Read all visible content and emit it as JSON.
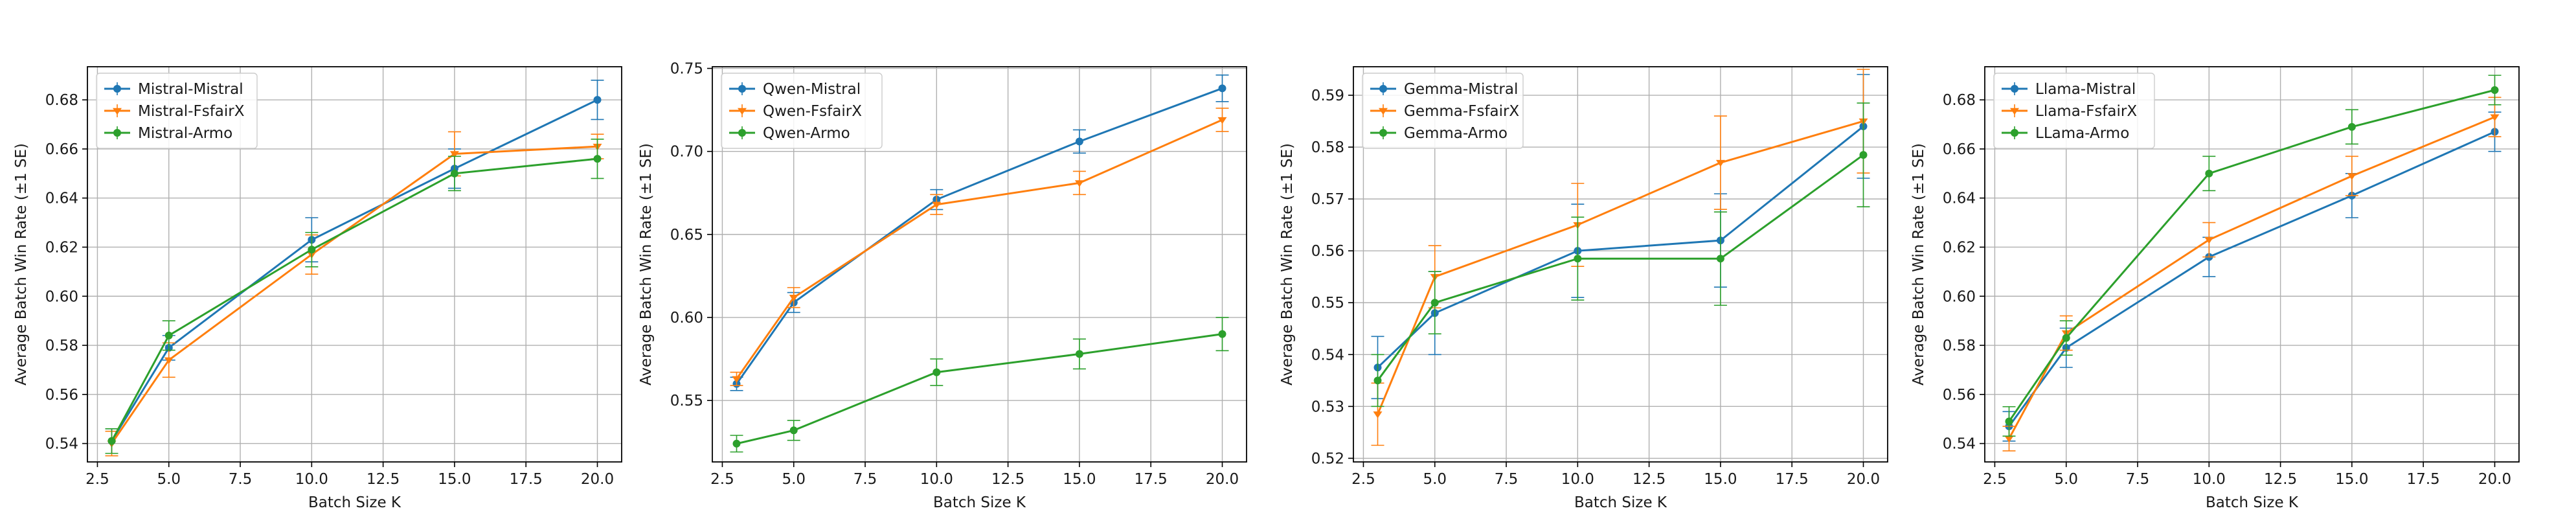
{
  "colors": {
    "blue": "#1f77b4",
    "orange": "#ff7f0e",
    "green": "#2ca02c",
    "grid": "#b0b0b0",
    "axis": "#000000"
  },
  "chart_data": [
    {
      "type": "line",
      "xlabel": "Batch Size K",
      "ylabel": "Average Batch Win Rate (±1 SE)",
      "x": [
        3,
        5,
        10,
        15,
        20
      ],
      "xlim": [
        2.15,
        20.85
      ],
      "ylim": [
        0.5325,
        0.6935
      ],
      "xticks": [
        2.5,
        5.0,
        7.5,
        10.0,
        12.5,
        15.0,
        17.5,
        20.0
      ],
      "xtick_labels": [
        "2.5",
        "5.0",
        "7.5",
        "10.0",
        "12.5",
        "15.0",
        "17.5",
        "20.0"
      ],
      "yticks": [
        0.54,
        0.56,
        0.58,
        0.6,
        0.62,
        0.64,
        0.66,
        0.68
      ],
      "ytick_labels": [
        "0.54",
        "0.56",
        "0.58",
        "0.60",
        "0.62",
        "0.64",
        "0.66",
        "0.68"
      ],
      "grid": true,
      "legend_position": "top-left",
      "series": [
        {
          "name": "Mistral-Mistral",
          "color": "blue",
          "marker": "circle",
          "values": [
            0.541,
            0.579,
            0.623,
            0.652,
            0.68
          ],
          "errors": [
            0.005,
            0.005,
            0.009,
            0.008,
            0.008
          ]
        },
        {
          "name": "Mistral-FsfairX",
          "color": "orange",
          "marker": "triangle-down",
          "values": [
            0.54,
            0.574,
            0.617,
            0.658,
            0.661
          ],
          "errors": [
            0.005,
            0.007,
            0.008,
            0.009,
            0.005
          ]
        },
        {
          "name": "Mistral-Armo",
          "color": "green",
          "marker": "circle",
          "values": [
            0.541,
            0.584,
            0.619,
            0.65,
            0.656
          ],
          "errors": [
            0.005,
            0.006,
            0.007,
            0.007,
            0.008
          ]
        }
      ]
    },
    {
      "type": "line",
      "xlabel": "Batch Size K",
      "ylabel": "Average Batch Win Rate (±1 SE)",
      "x": [
        3,
        5,
        10,
        15,
        20
      ],
      "xlim": [
        2.15,
        20.85
      ],
      "ylim": [
        0.513,
        0.751
      ],
      "xticks": [
        2.5,
        5.0,
        7.5,
        10.0,
        12.5,
        15.0,
        17.5,
        20.0
      ],
      "xtick_labels": [
        "2.5",
        "5.0",
        "7.5",
        "10.0",
        "12.5",
        "15.0",
        "17.5",
        "20.0"
      ],
      "yticks": [
        0.55,
        0.6,
        0.65,
        0.7,
        0.75
      ],
      "ytick_labels": [
        "0.55",
        "0.60",
        "0.65",
        "0.70",
        "0.75"
      ],
      "grid": true,
      "legend_position": "top-left",
      "series": [
        {
          "name": "Qwen-Mistral",
          "color": "blue",
          "marker": "circle",
          "values": [
            0.56,
            0.609,
            0.671,
            0.706,
            0.738
          ],
          "errors": [
            0.004,
            0.006,
            0.006,
            0.007,
            0.008
          ]
        },
        {
          "name": "Qwen-FsfairX",
          "color": "orange",
          "marker": "triangle-down",
          "values": [
            0.563,
            0.612,
            0.668,
            0.681,
            0.719
          ],
          "errors": [
            0.004,
            0.006,
            0.006,
            0.007,
            0.007
          ]
        },
        {
          "name": "Qwen-Armo",
          "color": "green",
          "marker": "circle",
          "values": [
            0.524,
            0.532,
            0.567,
            0.578,
            0.59
          ],
          "errors": [
            0.005,
            0.006,
            0.008,
            0.009,
            0.01
          ]
        }
      ]
    },
    {
      "type": "line",
      "xlabel": "Batch Size K",
      "ylabel": "Average Batch Win Rate (±1 SE)",
      "x": [
        3,
        5,
        10,
        15,
        20
      ],
      "xlim": [
        2.15,
        20.85
      ],
      "ylim": [
        0.5193,
        0.5955
      ],
      "xticks": [
        2.5,
        5.0,
        7.5,
        10.0,
        12.5,
        15.0,
        17.5,
        20.0
      ],
      "xtick_labels": [
        "2.5",
        "5.0",
        "7.5",
        "10.0",
        "12.5",
        "15.0",
        "17.5",
        "20.0"
      ],
      "yticks": [
        0.52,
        0.53,
        0.54,
        0.55,
        0.56,
        0.57,
        0.58,
        0.59
      ],
      "ytick_labels": [
        "0.52",
        "0.53",
        "0.54",
        "0.55",
        "0.56",
        "0.57",
        "0.58",
        "0.59"
      ],
      "grid": true,
      "legend_position": "top-left",
      "series": [
        {
          "name": "Gemma-Mistral",
          "color": "blue",
          "marker": "circle",
          "values": [
            0.5375,
            0.548,
            0.56,
            0.562,
            0.584
          ],
          "errors": [
            0.006,
            0.008,
            0.009,
            0.009,
            0.01
          ]
        },
        {
          "name": "Gemma-FsfairX",
          "color": "orange",
          "marker": "triangle-down",
          "values": [
            0.5285,
            0.555,
            0.565,
            0.577,
            0.585
          ],
          "errors": [
            0.006,
            0.006,
            0.008,
            0.009,
            0.01
          ]
        },
        {
          "name": "Gemma-Armo",
          "color": "green",
          "marker": "circle",
          "values": [
            0.535,
            0.55,
            0.5585,
            0.5585,
            0.5785
          ],
          "errors": [
            0.005,
            0.006,
            0.008,
            0.009,
            0.01
          ]
        }
      ]
    },
    {
      "type": "line",
      "xlabel": "Batch Size K",
      "ylabel": "Average Batch Win Rate (±1 SE)",
      "x": [
        3,
        5,
        10,
        15,
        20
      ],
      "xlim": [
        2.15,
        20.85
      ],
      "ylim": [
        0.5325,
        0.6935
      ],
      "xticks": [
        2.5,
        5.0,
        7.5,
        10.0,
        12.5,
        15.0,
        17.5,
        20.0
      ],
      "xtick_labels": [
        "2.5",
        "5.0",
        "7.5",
        "10.0",
        "12.5",
        "15.0",
        "17.5",
        "20.0"
      ],
      "yticks": [
        0.54,
        0.56,
        0.58,
        0.6,
        0.62,
        0.64,
        0.66,
        0.68
      ],
      "ytick_labels": [
        "0.54",
        "0.56",
        "0.58",
        "0.60",
        "0.62",
        "0.64",
        "0.66",
        "0.68"
      ],
      "grid": true,
      "legend_position": "top-left",
      "series": [
        {
          "name": "Llama-Mistral",
          "color": "blue",
          "marker": "circle",
          "values": [
            0.547,
            0.579,
            0.616,
            0.641,
            0.667
          ],
          "errors": [
            0.006,
            0.008,
            0.008,
            0.009,
            0.008
          ]
        },
        {
          "name": "Llama-FsfairX",
          "color": "orange",
          "marker": "triangle-down",
          "values": [
            0.542,
            0.585,
            0.623,
            0.649,
            0.673
          ],
          "errors": [
            0.005,
            0.007,
            0.007,
            0.008,
            0.008
          ]
        },
        {
          "name": "LLama-Armo",
          "color": "green",
          "marker": "circle",
          "values": [
            0.549,
            0.583,
            0.65,
            0.669,
            0.684
          ],
          "errors": [
            0.006,
            0.007,
            0.007,
            0.007,
            0.006
          ]
        }
      ]
    }
  ]
}
